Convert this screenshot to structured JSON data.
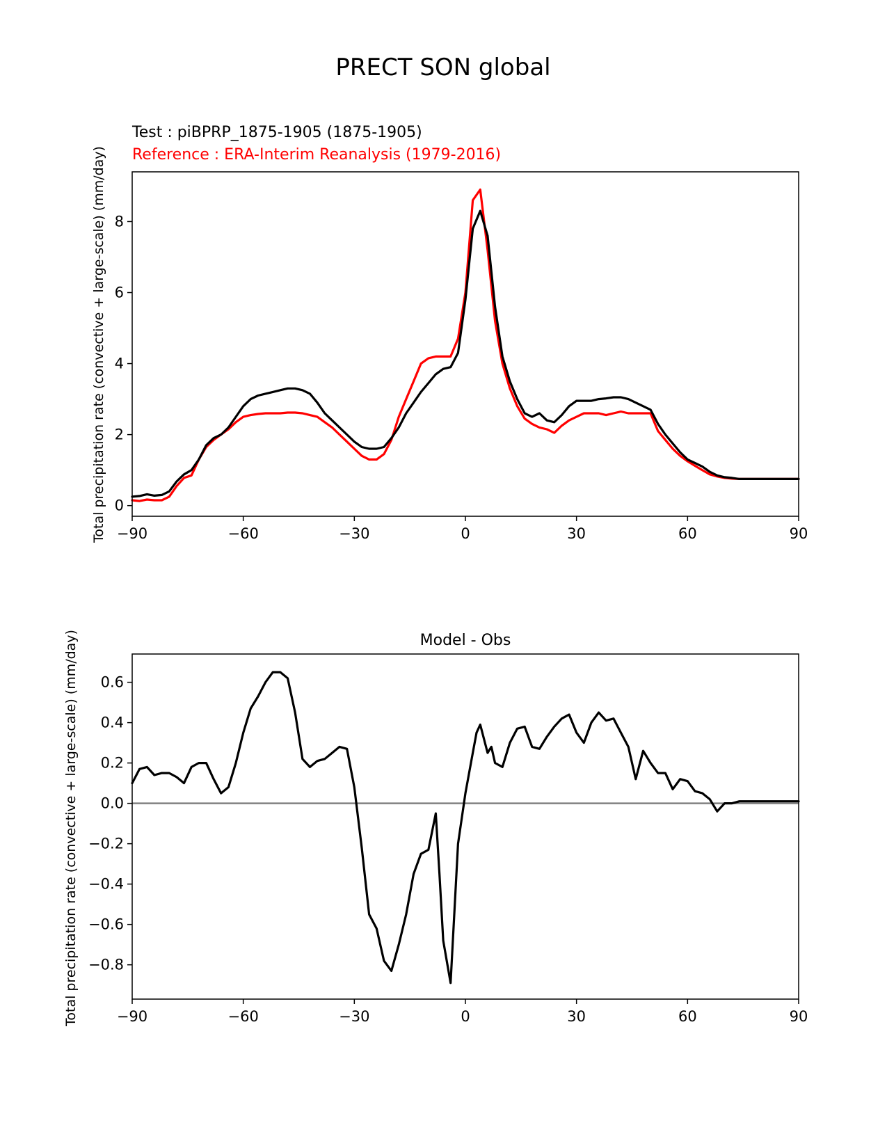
{
  "title": "PRECT SON global",
  "colors": {
    "test": "#000000",
    "reference": "#ff0000",
    "zero_line": "#808080",
    "axes": "#000000"
  },
  "chart_data": [
    {
      "type": "line",
      "test_label": "Test : piBPRP_1875-1905 (1875-1905)",
      "reference_label": "Reference : ERA-Interim Reanalysis (1979-2016)",
      "xlabel": "",
      "ylabel": "Total precipitation rate (convective + large-scale) (mm/day)",
      "xlim": [
        -90,
        90
      ],
      "ylim": [
        -0.3,
        9.4
      ],
      "xticks": [
        -90,
        -60,
        -30,
        0,
        30,
        60,
        90
      ],
      "xtick_labels": [
        "−90",
        "−60",
        "−30",
        "0",
        "30",
        "60",
        "90"
      ],
      "yticks": [
        0,
        2,
        4,
        6,
        8
      ],
      "ytick_labels": [
        "0",
        "2",
        "4",
        "6",
        "8"
      ],
      "series": [
        {
          "name": "Test",
          "color": "#000000",
          "x": [
            -90,
            -88,
            -86,
            -84,
            -82,
            -80,
            -78,
            -76,
            -74,
            -72,
            -70,
            -68,
            -66,
            -64,
            -62,
            -60,
            -58,
            -56,
            -54,
            -52,
            -50,
            -48,
            -46,
            -44,
            -42,
            -40,
            -38,
            -36,
            -34,
            -32,
            -30,
            -28,
            -26,
            -24,
            -22,
            -20,
            -18,
            -16,
            -14,
            -12,
            -10,
            -8,
            -6,
            -4,
            -2,
            0,
            2,
            4,
            6,
            8,
            10,
            12,
            14,
            16,
            18,
            20,
            22,
            24,
            26,
            28,
            30,
            32,
            34,
            36,
            38,
            40,
            42,
            44,
            46,
            48,
            50,
            52,
            54,
            56,
            58,
            60,
            62,
            64,
            66,
            68,
            70,
            72,
            74,
            76,
            78,
            80,
            82,
            84,
            86,
            88,
            90
          ],
          "values": [
            0.25,
            0.27,
            0.32,
            0.28,
            0.3,
            0.4,
            0.68,
            0.88,
            1.0,
            1.3,
            1.7,
            1.9,
            2.0,
            2.2,
            2.5,
            2.8,
            3.0,
            3.1,
            3.15,
            3.2,
            3.25,
            3.3,
            3.3,
            3.25,
            3.15,
            2.9,
            2.6,
            2.4,
            2.2,
            2.0,
            1.8,
            1.65,
            1.6,
            1.6,
            1.65,
            1.9,
            2.2,
            2.6,
            2.9,
            3.2,
            3.45,
            3.7,
            3.85,
            3.9,
            4.3,
            5.8,
            7.8,
            8.3,
            7.6,
            5.6,
            4.2,
            3.5,
            3.0,
            2.6,
            2.5,
            2.6,
            2.4,
            2.35,
            2.55,
            2.8,
            2.95,
            2.95,
            2.95,
            3.0,
            3.02,
            3.05,
            3.05,
            3.0,
            2.9,
            2.8,
            2.7,
            2.3,
            2.0,
            1.75,
            1.5,
            1.3,
            1.2,
            1.1,
            0.95,
            0.85,
            0.8,
            0.78,
            0.75,
            0.75,
            0.75,
            0.75,
            0.75,
            0.75,
            0.75,
            0.75,
            0.75
          ]
        },
        {
          "name": "Reference",
          "color": "#ff0000",
          "x": [
            -90,
            -88,
            -86,
            -84,
            -82,
            -80,
            -78,
            -76,
            -74,
            -72,
            -70,
            -68,
            -66,
            -64,
            -62,
            -60,
            -58,
            -56,
            -54,
            -52,
            -50,
            -48,
            -46,
            -44,
            -42,
            -40,
            -38,
            -36,
            -34,
            -32,
            -30,
            -28,
            -26,
            -24,
            -22,
            -20,
            -18,
            -16,
            -14,
            -12,
            -10,
            -8,
            -6,
            -4,
            -2,
            0,
            2,
            4,
            6,
            8,
            10,
            12,
            14,
            16,
            18,
            20,
            22,
            24,
            26,
            28,
            30,
            32,
            34,
            36,
            38,
            40,
            42,
            44,
            46,
            48,
            50,
            52,
            54,
            56,
            58,
            60,
            62,
            64,
            66,
            68,
            70,
            72,
            74,
            76,
            78,
            80,
            82,
            84,
            86,
            88,
            90
          ],
          "values": [
            0.15,
            0.13,
            0.17,
            0.15,
            0.15,
            0.25,
            0.55,
            0.78,
            0.85,
            1.3,
            1.65,
            1.85,
            2.0,
            2.15,
            2.35,
            2.5,
            2.55,
            2.58,
            2.6,
            2.6,
            2.6,
            2.62,
            2.62,
            2.6,
            2.55,
            2.5,
            2.35,
            2.2,
            2.0,
            1.8,
            1.6,
            1.4,
            1.3,
            1.3,
            1.45,
            1.85,
            2.5,
            3.0,
            3.5,
            4.0,
            4.15,
            4.2,
            4.2,
            4.2,
            4.7,
            6.0,
            8.6,
            8.9,
            7.2,
            5.2,
            4.0,
            3.3,
            2.8,
            2.45,
            2.3,
            2.2,
            2.15,
            2.05,
            2.25,
            2.4,
            2.5,
            2.6,
            2.6,
            2.6,
            2.55,
            2.6,
            2.65,
            2.6,
            2.6,
            2.6,
            2.6,
            2.1,
            1.85,
            1.6,
            1.4,
            1.25,
            1.12,
            1.0,
            0.88,
            0.82,
            0.78,
            0.76,
            0.75,
            0.75,
            0.75,
            0.75,
            0.75,
            0.75,
            0.75,
            0.75,
            0.75
          ]
        }
      ]
    },
    {
      "type": "line",
      "title": "Model - Obs",
      "xlabel": "",
      "ylabel": "Total precipitation rate (convective + large-scale) (mm/day)",
      "xlim": [
        -90,
        90
      ],
      "ylim": [
        -0.97,
        0.74
      ],
      "xticks": [
        -90,
        -60,
        -30,
        0,
        30,
        60,
        90
      ],
      "xtick_labels": [
        "−90",
        "−60",
        "−30",
        "0",
        "30",
        "60",
        "90"
      ],
      "yticks": [
        0.6,
        0.4,
        0.2,
        0.0,
        -0.2,
        -0.4,
        -0.6,
        -0.8
      ],
      "ytick_labels": [
        "0.6",
        "0.4",
        "0.2",
        "0.0",
        "−0.2",
        "−0.4",
        "−0.6",
        "−0.8"
      ],
      "zero_line": 0.0,
      "series": [
        {
          "name": "Model - Obs",
          "color": "#000000",
          "x": [
            -90,
            -88,
            -86,
            -84,
            -82,
            -80,
            -78,
            -76,
            -74,
            -72,
            -70,
            -68,
            -66,
            -64,
            -62,
            -60,
            -58,
            -56,
            -54,
            -52,
            -50,
            -48,
            -46,
            -44,
            -42,
            -40,
            -38,
            -36,
            -34,
            -32,
            -30,
            -28,
            -26,
            -24,
            -22,
            -20,
            -18,
            -16,
            -14,
            -12,
            -10,
            -8,
            -7,
            -6,
            -4,
            -2,
            0,
            2,
            3,
            4,
            5,
            6,
            7,
            8,
            10,
            12,
            14,
            16,
            18,
            20,
            22,
            24,
            26,
            28,
            30,
            32,
            34,
            36,
            38,
            40,
            42,
            44,
            46,
            48,
            50,
            52,
            54,
            56,
            58,
            60,
            62,
            64,
            66,
            68,
            70,
            72,
            74,
            76,
            78,
            80,
            82,
            84,
            86,
            88,
            90
          ],
          "values": [
            0.1,
            0.17,
            0.18,
            0.14,
            0.15,
            0.15,
            0.13,
            0.1,
            0.18,
            0.2,
            0.2,
            0.12,
            0.05,
            0.08,
            0.2,
            0.35,
            0.47,
            0.53,
            0.6,
            0.65,
            0.65,
            0.62,
            0.45,
            0.22,
            0.18,
            0.21,
            0.22,
            0.25,
            0.28,
            0.27,
            0.08,
            -0.22,
            -0.55,
            -0.62,
            -0.78,
            -0.83,
            -0.7,
            -0.55,
            -0.35,
            -0.25,
            -0.23,
            -0.05,
            -0.35,
            -0.68,
            -0.89,
            -0.2,
            0.05,
            0.25,
            0.35,
            0.39,
            0.32,
            0.25,
            0.28,
            0.2,
            0.18,
            0.3,
            0.37,
            0.38,
            0.28,
            0.27,
            0.33,
            0.38,
            0.42,
            0.44,
            0.35,
            0.3,
            0.4,
            0.45,
            0.41,
            0.42,
            0.35,
            0.28,
            0.12,
            0.26,
            0.2,
            0.15,
            0.15,
            0.07,
            0.12,
            0.11,
            0.06,
            0.05,
            0.02,
            -0.04,
            0.0,
            0.0,
            0.01,
            0.01,
            0.01,
            0.01,
            0.01,
            0.01,
            0.01,
            0.01,
            0.01
          ]
        }
      ]
    }
  ]
}
